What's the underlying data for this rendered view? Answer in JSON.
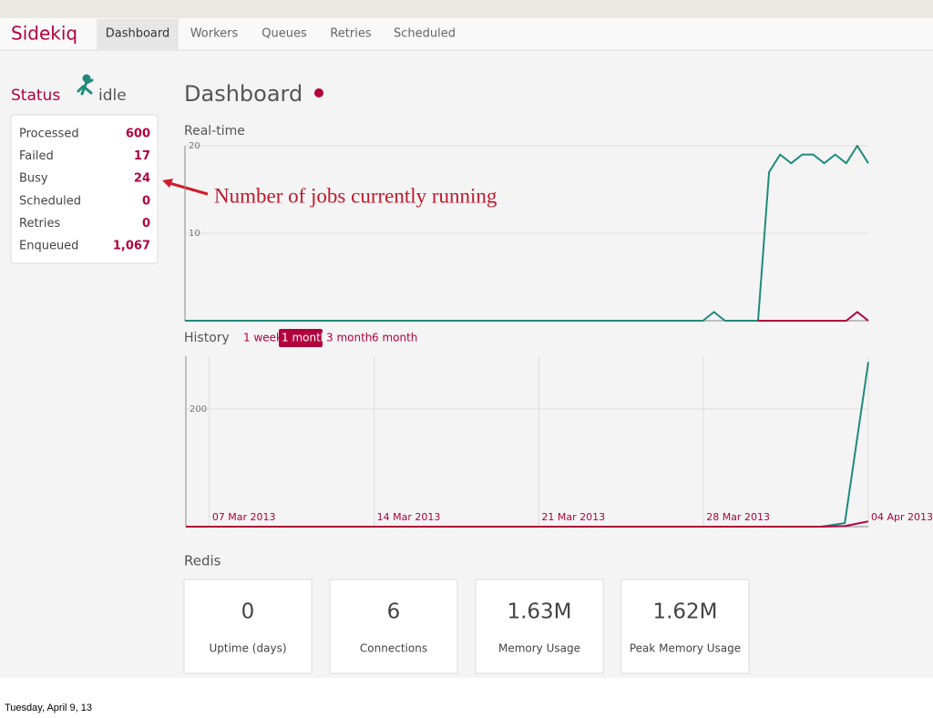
{
  "nav": {
    "brand": "Sidekiq",
    "tabs": [
      "Dashboard",
      "Workers",
      "Queues",
      "Retries",
      "Scheduled"
    ],
    "active": 0
  },
  "status": {
    "title": "Status",
    "state": "idle",
    "stats": [
      {
        "label": "Processed",
        "value": "600"
      },
      {
        "label": "Failed",
        "value": "17"
      },
      {
        "label": "Busy",
        "value": "24"
      },
      {
        "label": "Scheduled",
        "value": "0"
      },
      {
        "label": "Retries",
        "value": "0"
      },
      {
        "label": "Enqueued",
        "value": "1,067"
      }
    ]
  },
  "annotation": "Number of jobs currently running",
  "dashboard": {
    "title": "Dashboard"
  },
  "chart_data": [
    {
      "type": "line",
      "title": "Real-time",
      "ylim": [
        0,
        20
      ],
      "yticks": [
        10,
        20
      ],
      "grid": true,
      "series": [
        {
          "color": "#1f8a7c",
          "values": [
            0,
            0,
            0,
            0,
            0,
            0,
            0,
            0,
            0,
            0,
            0,
            0,
            0,
            0,
            0,
            0,
            0,
            0,
            0,
            0,
            0,
            0,
            0,
            0,
            0,
            0,
            0,
            0,
            0,
            0,
            0,
            0,
            0,
            0,
            0,
            0,
            0,
            0,
            0,
            0,
            0,
            0,
            0,
            0,
            0,
            0,
            0,
            0,
            1,
            0,
            0,
            0,
            0,
            17,
            19,
            18,
            19,
            19,
            18,
            19,
            18,
            20,
            18
          ]
        },
        {
          "color": "#b1003e",
          "values": [
            null,
            null,
            null,
            null,
            null,
            null,
            null,
            null,
            null,
            null,
            null,
            null,
            null,
            null,
            null,
            null,
            null,
            null,
            null,
            null,
            null,
            null,
            null,
            null,
            null,
            null,
            null,
            null,
            null,
            null,
            null,
            null,
            null,
            null,
            null,
            null,
            null,
            null,
            null,
            null,
            null,
            null,
            null,
            null,
            null,
            null,
            null,
            null,
            null,
            null,
            null,
            null,
            0,
            0,
            0,
            0,
            0,
            0,
            0,
            0,
            0,
            1,
            0
          ]
        }
      ]
    },
    {
      "type": "line",
      "title": "History",
      "ranges": [
        "1 week",
        "1 month",
        "3 month",
        "6 month"
      ],
      "active_range": 1,
      "categories": [
        null,
        "07 Mar 2013",
        null,
        null,
        null,
        null,
        null,
        null,
        "14 Mar 2013",
        null,
        null,
        null,
        null,
        null,
        null,
        "21 Mar 2013",
        null,
        null,
        null,
        null,
        null,
        null,
        "28 Mar 2013",
        null,
        null,
        null,
        null,
        null,
        null,
        "04 Apr 2013"
      ],
      "ylim": [
        0,
        290
      ],
      "yticks": [
        200
      ],
      "grid": true,
      "series": [
        {
          "color": "#1f8a7c",
          "values": [
            0,
            0,
            0,
            0,
            0,
            0,
            0,
            0,
            0,
            0,
            0,
            0,
            0,
            0,
            0,
            0,
            0,
            0,
            0,
            0,
            0,
            0,
            0,
            0,
            0,
            0,
            0,
            0,
            6,
            280
          ]
        },
        {
          "color": "#b1003e",
          "values": [
            0,
            0,
            0,
            0,
            0,
            0,
            0,
            0,
            0,
            0,
            0,
            0,
            0,
            0,
            0,
            0,
            0,
            0,
            0,
            0,
            0,
            0,
            0,
            0,
            0,
            0,
            0,
            0,
            1,
            9
          ]
        }
      ]
    }
  ],
  "redis": {
    "title": "Redis",
    "stats": [
      {
        "value": "0",
        "label": "Uptime (days)"
      },
      {
        "value": "6",
        "label": "Connections"
      },
      {
        "value": "1.63M",
        "label": "Memory Usage"
      },
      {
        "value": "1.62M",
        "label": "Peak Memory Usage"
      }
    ]
  },
  "footer": "Tuesday, April 9, 13"
}
